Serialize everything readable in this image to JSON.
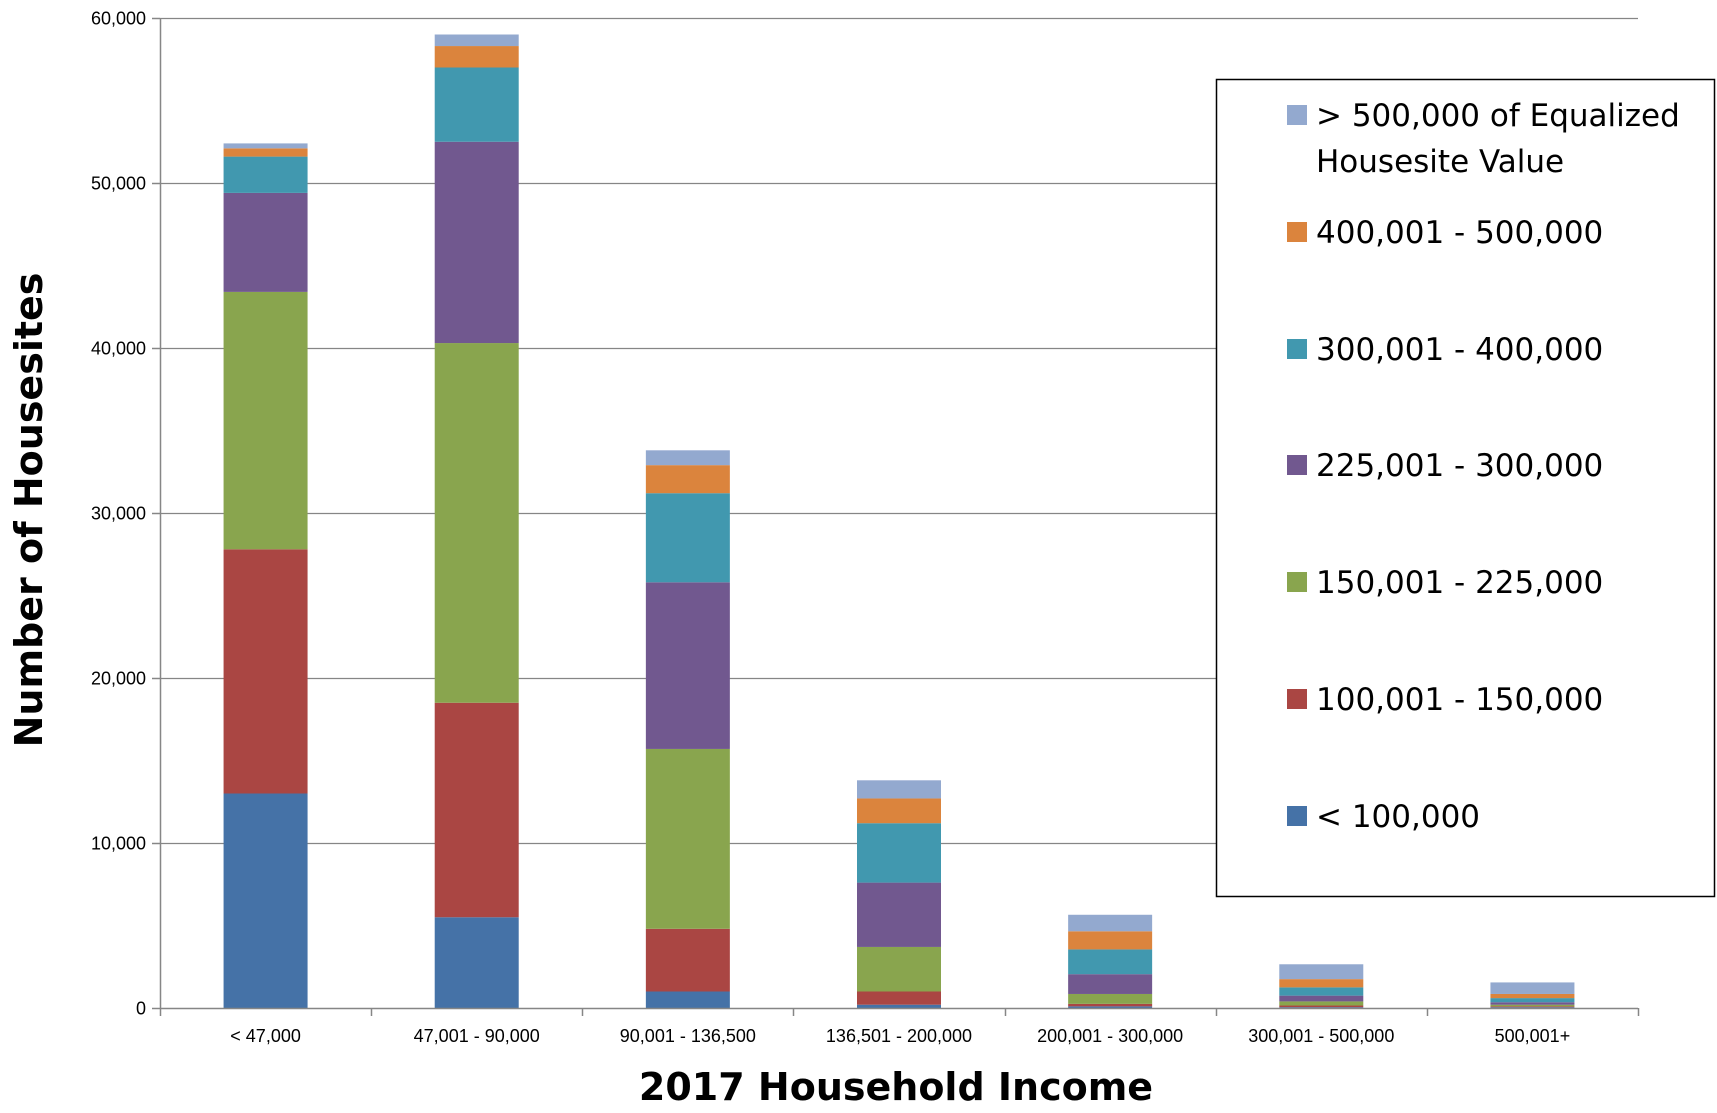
{
  "chart_data": {
    "type": "bar",
    "stacked": true,
    "xlabel": "2017 Household Income",
    "ylabel": "Number of Housesites",
    "ylim": [
      0,
      60000
    ],
    "yticks": [
      0,
      10000,
      20000,
      30000,
      40000,
      50000,
      60000
    ],
    "ytick_labels": [
      "0",
      "10,000",
      "20,000",
      "30,000",
      "40,000",
      "50,000",
      "60,000"
    ],
    "grid": true,
    "legend_position": "right",
    "categories": [
      "< 47,000",
      "47,001 - 90,000",
      "90,001 - 136,500",
      "136,501 - 200,000",
      "200,001 - 300,000",
      "300,001 - 500,000",
      "500,001+"
    ],
    "series": [
      {
        "name": "< 100,000",
        "color": "#4572A7",
        "values": [
          13000,
          5500,
          1000,
          200,
          100,
          50,
          50
        ]
      },
      {
        "name": "100,001 - 150,000",
        "color": "#AA4643",
        "values": [
          14800,
          13000,
          3800,
          800,
          150,
          100,
          50
        ]
      },
      {
        "name": "150,001 - 225,000",
        "color": "#89A54E",
        "values": [
          15600,
          21800,
          10900,
          2700,
          600,
          250,
          100
        ]
      },
      {
        "name": "225,001 - 300,000",
        "color": "#71588F",
        "values": [
          6000,
          12200,
          10100,
          3900,
          1200,
          350,
          150
        ]
      },
      {
        "name": "300,001 - 400,000",
        "color": "#4198AF",
        "values": [
          2200,
          4500,
          5400,
          3600,
          1500,
          500,
          250
        ]
      },
      {
        "name": "400,001 - 500,000",
        "color": "#DB843D",
        "values": [
          500,
          1300,
          1700,
          1500,
          1100,
          500,
          250
        ]
      },
      {
        "name": "> 500,000 of Equalized Housesite Value",
        "color": "#93A9CF",
        "values": [
          300,
          700,
          900,
          1100,
          1000,
          900,
          700
        ]
      }
    ],
    "legend": {
      "entries": [
        {
          "lines": [
            "> 500,000 of Equalized",
            "Housesite Value"
          ],
          "color": "#93A9CF"
        },
        {
          "lines": [
            "400,001 - 500,000"
          ],
          "color": "#DB843D"
        },
        {
          "lines": [
            "300,001 - 400,000"
          ],
          "color": "#4198AF"
        },
        {
          "lines": [
            "225,001 - 300,000"
          ],
          "color": "#71588F"
        },
        {
          "lines": [
            "150,001 - 225,000"
          ],
          "color": "#89A54E"
        },
        {
          "lines": [
            "100,001 - 150,000"
          ],
          "color": "#AA4643"
        },
        {
          "lines": [
            "< 100,000"
          ],
          "color": "#4572A7"
        }
      ]
    }
  }
}
